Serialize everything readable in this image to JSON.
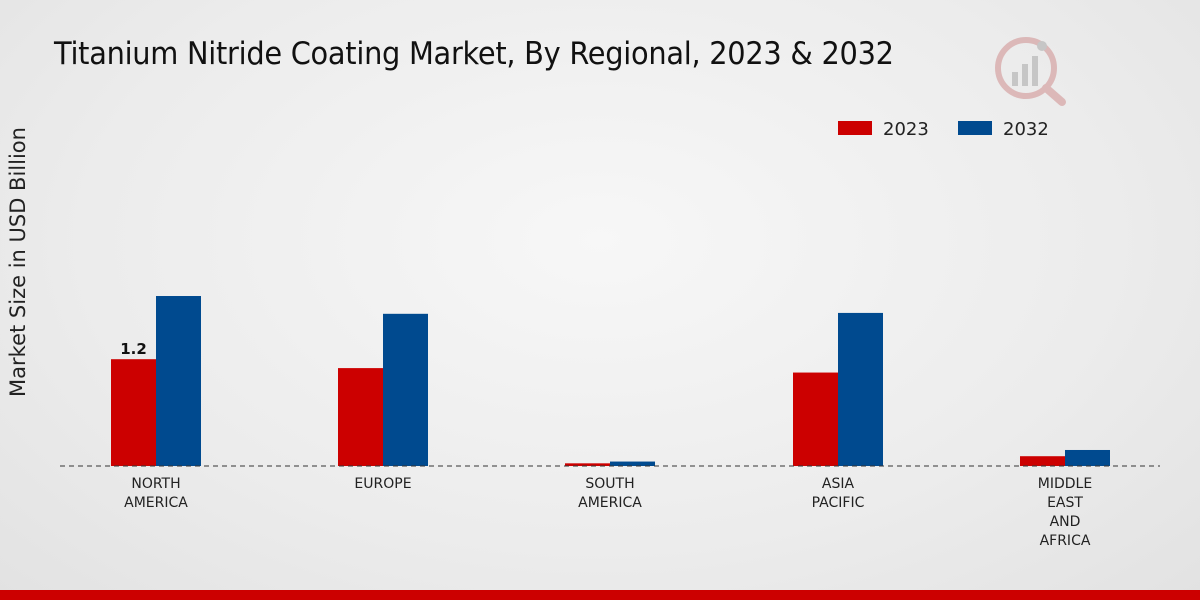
{
  "chart_data": {
    "type": "bar",
    "title": "Titanium Nitride Coating Market, By Regional, 2023 & 2032",
    "ylabel": "Market Size in USD Billion",
    "xlabel": "",
    "categories": [
      [
        "NORTH",
        "AMERICA"
      ],
      [
        "EUROPE"
      ],
      [
        "SOUTH",
        "AMERICA"
      ],
      [
        "ASIA",
        "PACIFIC"
      ],
      [
        "MIDDLE",
        "EAST",
        "AND",
        "AFRICA"
      ]
    ],
    "series": [
      {
        "name": "2023",
        "color": "#cc0000",
        "values": [
          1.2,
          1.1,
          0.03,
          1.05,
          0.11
        ]
      },
      {
        "name": "2032",
        "color": "#004a8f",
        "values": [
          1.91,
          1.71,
          0.05,
          1.72,
          0.18
        ]
      }
    ],
    "data_labels": [
      {
        "series": 0,
        "index": 0,
        "text": "1.2"
      }
    ],
    "ylim": [
      0,
      4.0
    ],
    "grid": false,
    "legend_position": "top-right"
  }
}
